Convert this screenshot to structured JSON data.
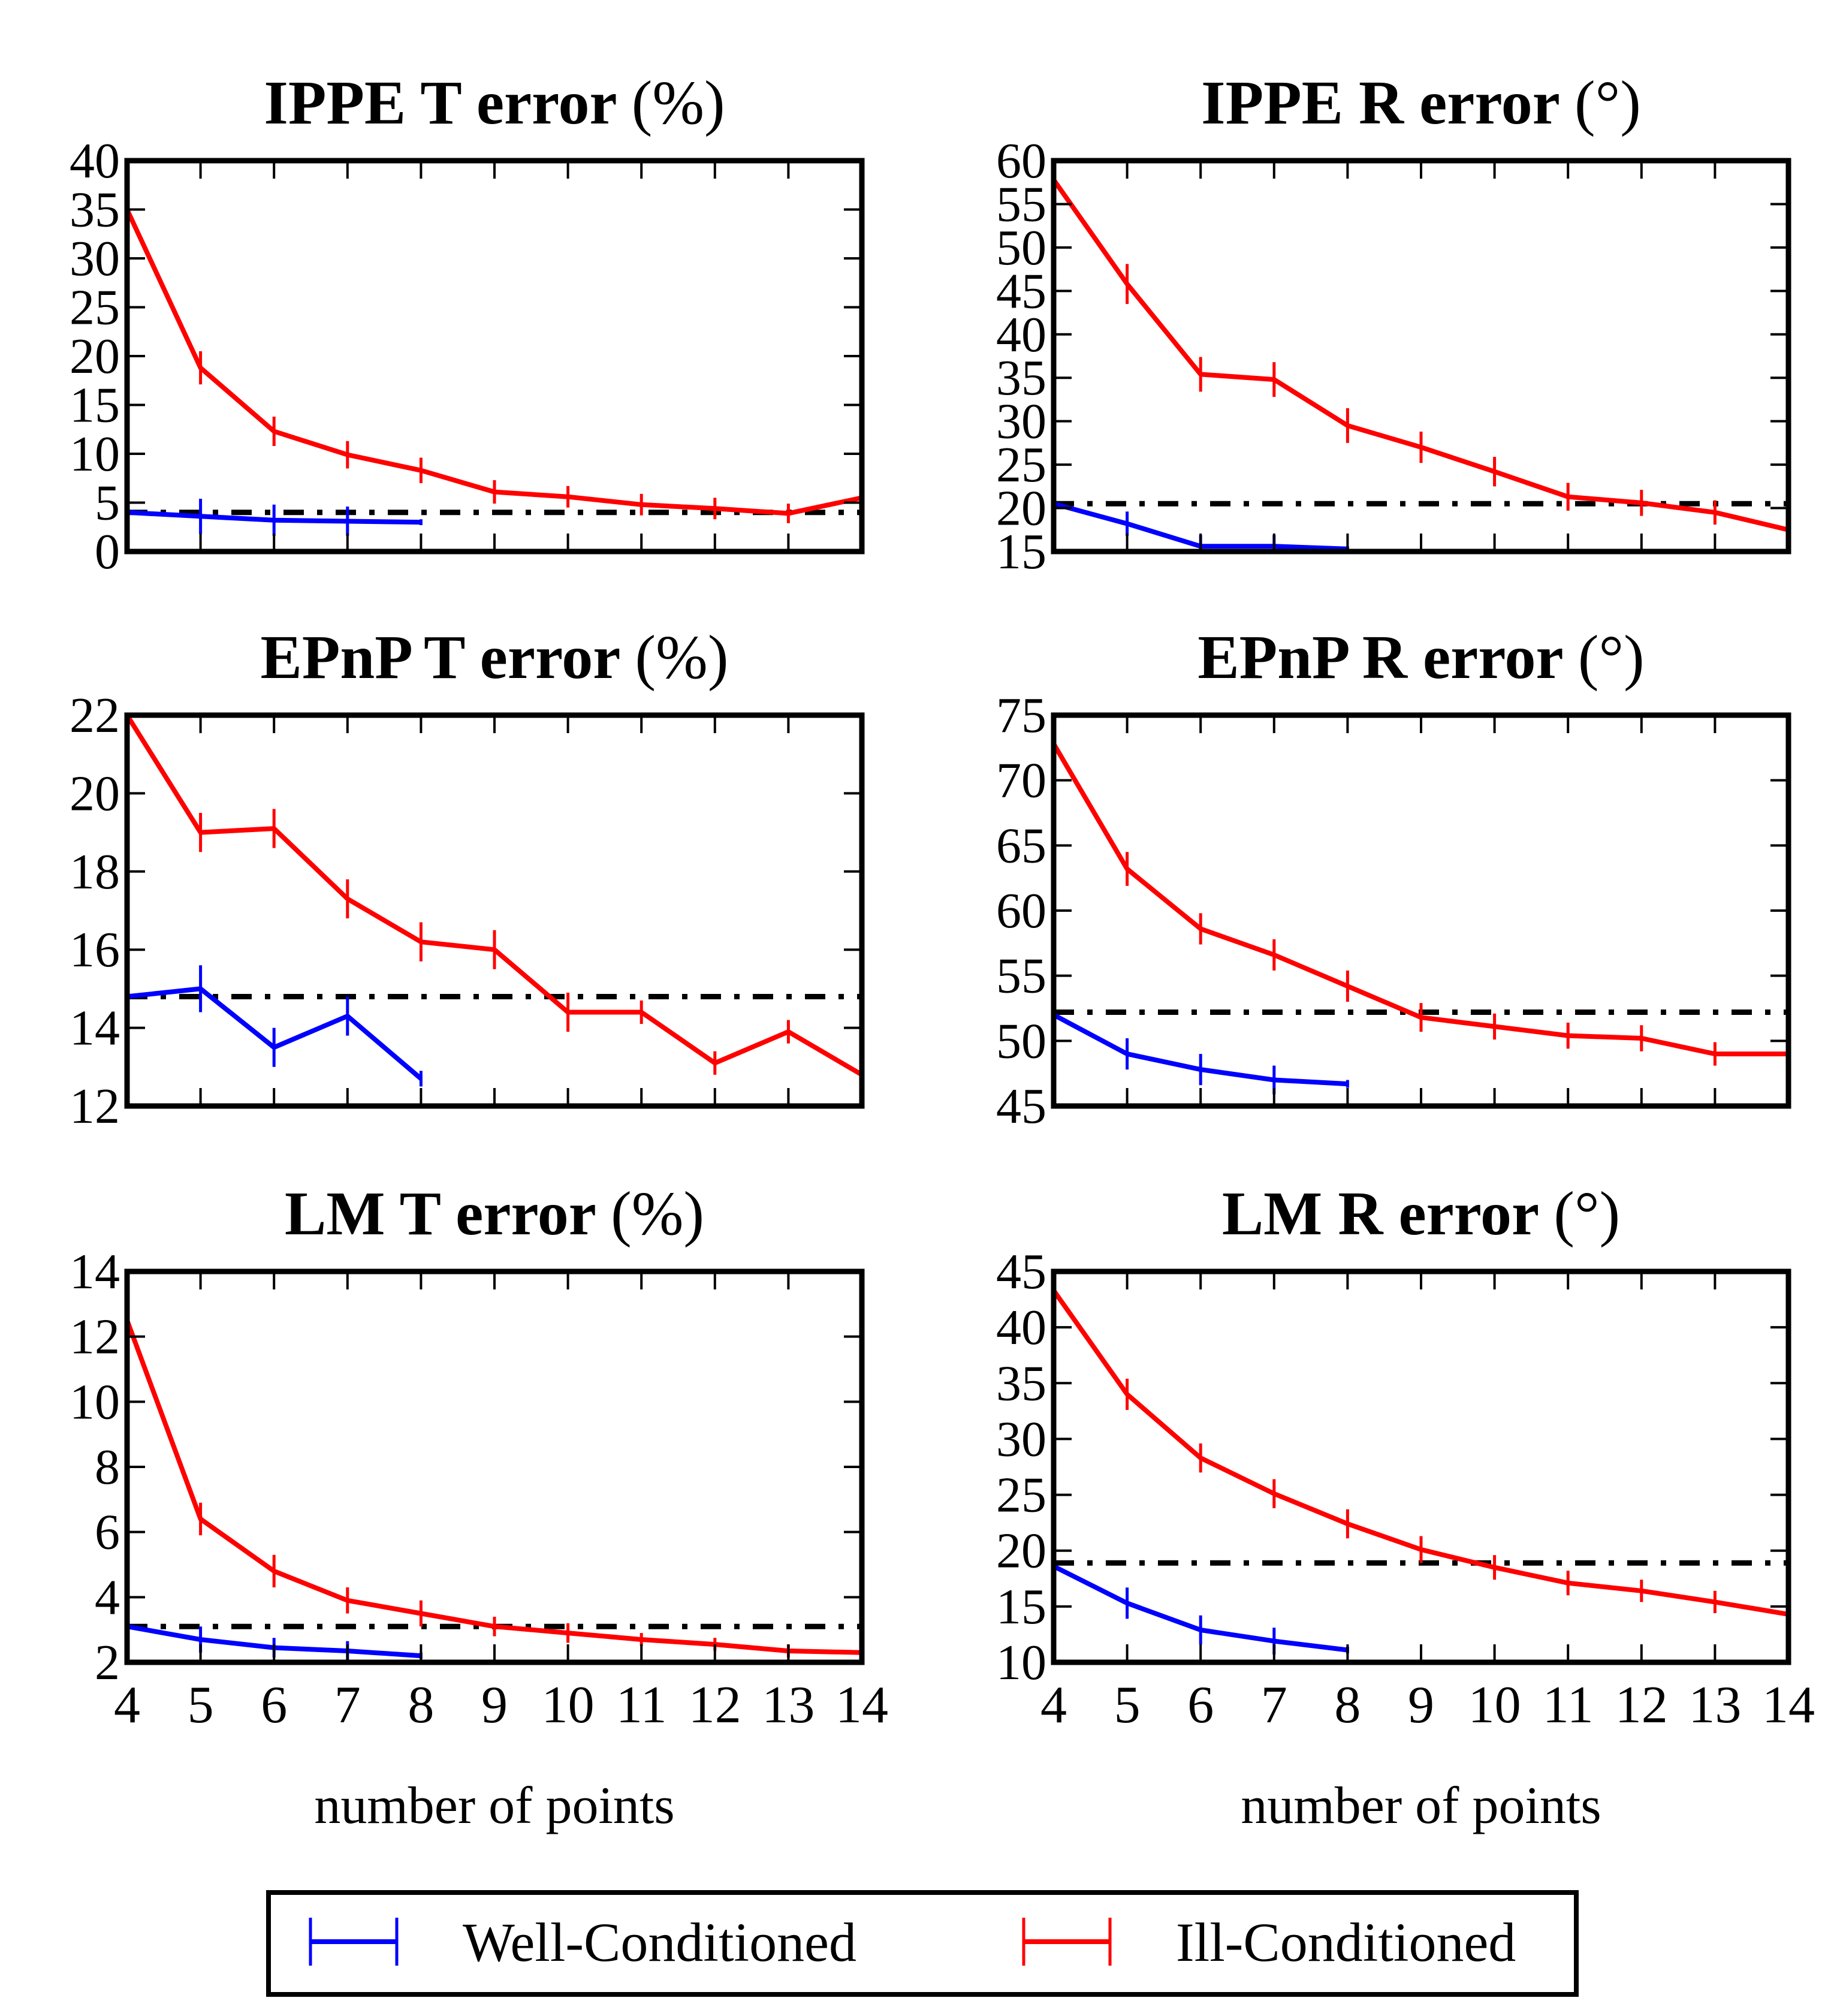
{
  "colors": {
    "well": "#0000ff",
    "ill": "#ff0000",
    "reference": "#000000",
    "axis": "#000000"
  },
  "legend": {
    "placement": "bottom-center",
    "items": [
      {
        "label": "Well-Conditioned",
        "color": "#0000ff"
      },
      {
        "label": "Ill-Conditioned",
        "color": "#ff0000"
      }
    ]
  },
  "chart_data": [
    {
      "id": "ippe-t",
      "type": "line",
      "title_main": "IPPE T error",
      "title_unit": "(%)",
      "xlabel": "",
      "xlim": [
        4,
        14
      ],
      "ylim": [
        0,
        40
      ],
      "xticks": [
        4,
        5,
        6,
        7,
        8,
        9,
        10,
        11,
        12,
        13,
        14
      ],
      "yticks": [
        0,
        5,
        10,
        15,
        20,
        25,
        30,
        35,
        40
      ],
      "show_xtick_labels": false,
      "series": [
        {
          "key": "well",
          "x": [
            4,
            5,
            6,
            7,
            8
          ],
          "y": [
            4.0,
            3.6,
            3.2,
            3.1,
            3.0
          ],
          "err": [
            0.3,
            1.8,
            1.6,
            1.5,
            0.3
          ]
        },
        {
          "key": "ill",
          "x": [
            4,
            5,
            6,
            7,
            8,
            9,
            10,
            11,
            12,
            13,
            14
          ],
          "y": [
            35.0,
            18.8,
            12.3,
            9.9,
            8.3,
            6.1,
            5.6,
            4.8,
            4.4,
            3.9,
            5.5
          ],
          "err": [
            1.2,
            1.7,
            1.5,
            1.4,
            1.3,
            1.2,
            1.1,
            1.1,
            1.1,
            1.0,
            0.4
          ]
        }
      ],
      "reference_y": 4.0
    },
    {
      "id": "ippe-r",
      "type": "line",
      "title_main": "IPPE R error",
      "title_unit": "(°)",
      "xlabel": "",
      "xlim": [
        4,
        14
      ],
      "ylim": [
        15,
        60
      ],
      "xticks": [
        4,
        5,
        6,
        7,
        8,
        9,
        10,
        11,
        12,
        13,
        14
      ],
      "yticks": [
        15,
        20,
        25,
        30,
        35,
        40,
        45,
        50,
        55,
        60
      ],
      "show_xtick_labels": false,
      "series": [
        {
          "key": "well",
          "x": [
            4,
            5,
            6,
            7,
            8
          ],
          "y": [
            20.5,
            18.2,
            15.6,
            15.6,
            15.3
          ],
          "err": [
            0.3,
            1.4,
            1.3,
            1.3,
            0.3
          ]
        },
        {
          "key": "ill",
          "x": [
            4,
            5,
            6,
            7,
            8,
            9,
            10,
            11,
            12,
            13,
            14
          ],
          "y": [
            57.8,
            45.8,
            35.4,
            34.8,
            29.5,
            27.0,
            24.2,
            21.3,
            20.6,
            19.5,
            17.5
          ],
          "err": [
            0.3,
            2.3,
            2.0,
            2.0,
            2.0,
            1.8,
            1.7,
            1.6,
            1.5,
            1.4,
            0.3
          ]
        }
      ],
      "reference_y": 20.5
    },
    {
      "id": "epnp-t",
      "type": "line",
      "title_main": "EPnP T error",
      "title_unit": "(%)",
      "xlabel": "",
      "xlim": [
        4,
        14
      ],
      "ylim": [
        12,
        22
      ],
      "xticks": [
        4,
        5,
        6,
        7,
        8,
        9,
        10,
        11,
        12,
        13,
        14
      ],
      "yticks": [
        12,
        14,
        16,
        18,
        20,
        22
      ],
      "show_xtick_labels": false,
      "series": [
        {
          "key": "well",
          "x": [
            4,
            5,
            6,
            7,
            8
          ],
          "y": [
            14.8,
            15.0,
            13.5,
            14.3,
            12.7
          ],
          "err": [
            0.1,
            0.6,
            0.5,
            0.5,
            0.2
          ]
        },
        {
          "key": "ill",
          "x": [
            4,
            5,
            6,
            7,
            8,
            9,
            10,
            11,
            12,
            13,
            14
          ],
          "y": [
            22.0,
            19.0,
            19.1,
            17.3,
            16.2,
            16.0,
            14.4,
            14.4,
            13.1,
            13.9,
            12.8
          ],
          "err": [
            0.1,
            0.5,
            0.5,
            0.5,
            0.5,
            0.5,
            0.5,
            0.3,
            0.3,
            0.3,
            0.1
          ]
        }
      ],
      "reference_y": 14.8
    },
    {
      "id": "epnp-r",
      "type": "line",
      "title_main": "EPnP R error",
      "title_unit": "(°)",
      "xlabel": "",
      "xlim": [
        4,
        14
      ],
      "ylim": [
        45,
        75
      ],
      "xticks": [
        4,
        5,
        6,
        7,
        8,
        9,
        10,
        11,
        12,
        13,
        14
      ],
      "yticks": [
        45,
        50,
        55,
        60,
        65,
        70,
        75
      ],
      "show_xtick_labels": false,
      "series": [
        {
          "key": "well",
          "x": [
            4,
            5,
            6,
            7,
            8
          ],
          "y": [
            52.0,
            49.0,
            47.8,
            47.0,
            46.7
          ],
          "err": [
            0.3,
            1.2,
            1.2,
            1.1,
            0.3
          ]
        },
        {
          "key": "ill",
          "x": [
            4,
            5,
            6,
            7,
            8,
            9,
            10,
            11,
            12,
            13,
            14
          ],
          "y": [
            72.8,
            63.2,
            58.6,
            56.6,
            54.2,
            51.8,
            51.1,
            50.4,
            50.2,
            49.0,
            49.0
          ],
          "err": [
            0.3,
            1.3,
            1.2,
            1.2,
            1.2,
            1.1,
            1.0,
            1.0,
            1.0,
            0.9,
            0.2
          ]
        }
      ],
      "reference_y": 52.2
    },
    {
      "id": "lm-t",
      "type": "line",
      "title_main": "LM T error",
      "title_unit": "(%)",
      "xlabel": "number of points",
      "xlim": [
        4,
        14
      ],
      "ylim": [
        2,
        14
      ],
      "xticks": [
        4,
        5,
        6,
        7,
        8,
        9,
        10,
        11,
        12,
        13,
        14
      ],
      "yticks": [
        2,
        4,
        6,
        8,
        10,
        12,
        14
      ],
      "show_xtick_labels": true,
      "series": [
        {
          "key": "well",
          "x": [
            4,
            5,
            6,
            7,
            8
          ],
          "y": [
            3.1,
            2.7,
            2.45,
            2.35,
            2.2
          ],
          "err": [
            0.1,
            0.4,
            0.3,
            0.3,
            0.1
          ]
        },
        {
          "key": "ill",
          "x": [
            4,
            5,
            6,
            7,
            8,
            9,
            10,
            11,
            12,
            13,
            14
          ],
          "y": [
            12.5,
            6.4,
            4.8,
            3.9,
            3.5,
            3.1,
            2.9,
            2.7,
            2.55,
            2.35,
            2.3
          ],
          "err": [
            0.1,
            0.5,
            0.5,
            0.4,
            0.4,
            0.3,
            0.3,
            0.2,
            0.2,
            0.2,
            0.1
          ]
        }
      ],
      "reference_y": 3.1
    },
    {
      "id": "lm-r",
      "type": "line",
      "title_main": "LM R error",
      "title_unit": "(°)",
      "xlabel": "number of points",
      "xlim": [
        4,
        14
      ],
      "ylim": [
        10,
        45
      ],
      "xticks": [
        4,
        5,
        6,
        7,
        8,
        9,
        10,
        11,
        12,
        13,
        14
      ],
      "yticks": [
        10,
        15,
        20,
        25,
        30,
        35,
        40,
        45
      ],
      "show_xtick_labels": true,
      "series": [
        {
          "key": "well",
          "x": [
            4,
            5,
            6,
            7,
            8
          ],
          "y": [
            18.6,
            15.3,
            12.9,
            11.9,
            11.1
          ],
          "err": [
            0.3,
            1.4,
            1.3,
            1.2,
            0.3
          ]
        },
        {
          "key": "ill",
          "x": [
            4,
            5,
            6,
            7,
            8,
            9,
            10,
            11,
            12,
            13,
            14
          ],
          "y": [
            43.3,
            34.0,
            28.3,
            25.1,
            22.4,
            20.1,
            18.5,
            17.1,
            16.4,
            15.4,
            14.3
          ],
          "err": [
            0.3,
            1.4,
            1.3,
            1.3,
            1.3,
            1.2,
            1.1,
            1.1,
            1.0,
            1.0,
            0.2
          ]
        }
      ],
      "reference_y": 18.9
    }
  ]
}
